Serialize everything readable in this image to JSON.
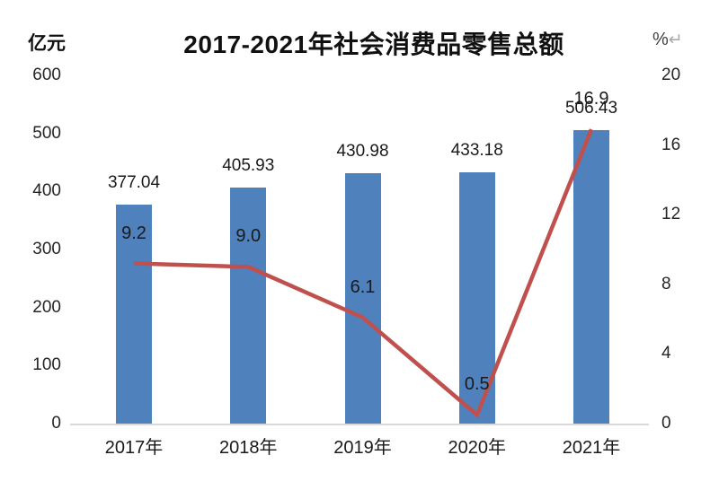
{
  "chart_data": {
    "type": "combo-bar-line",
    "title": "2017-2021年社会消费品零售总额",
    "categories": [
      "2017年",
      "2018年",
      "2019年",
      "2020年",
      "2021年"
    ],
    "series": [
      {
        "type": "bar",
        "values": [
          377.04,
          405.93,
          430.98,
          433.18,
          506.43
        ],
        "labels": [
          "377.04",
          "405.93",
          "430.98",
          "433.18",
          "506.43"
        ],
        "color": "#4F81BD"
      },
      {
        "type": "line",
        "values": [
          9.2,
          9.0,
          6.1,
          0.5,
          16.9
        ],
        "labels": [
          "9.2",
          "9.0",
          "6.1",
          "0.5",
          "16.9"
        ],
        "color": "#C0504D"
      }
    ],
    "left_axis": {
      "unit": "亿元",
      "ticks": [
        0,
        100,
        200,
        300,
        400,
        500,
        600
      ],
      "range": [
        0,
        600
      ]
    },
    "right_axis": {
      "unit": "%",
      "return_mark": "↵",
      "ticks": [
        0,
        4,
        8,
        12,
        16,
        20
      ],
      "range": [
        0,
        20
      ]
    },
    "grid": false,
    "legend": false,
    "background": "#ffffff",
    "text_color": "#262626",
    "axis_line_color": "#d9d9d9"
  }
}
